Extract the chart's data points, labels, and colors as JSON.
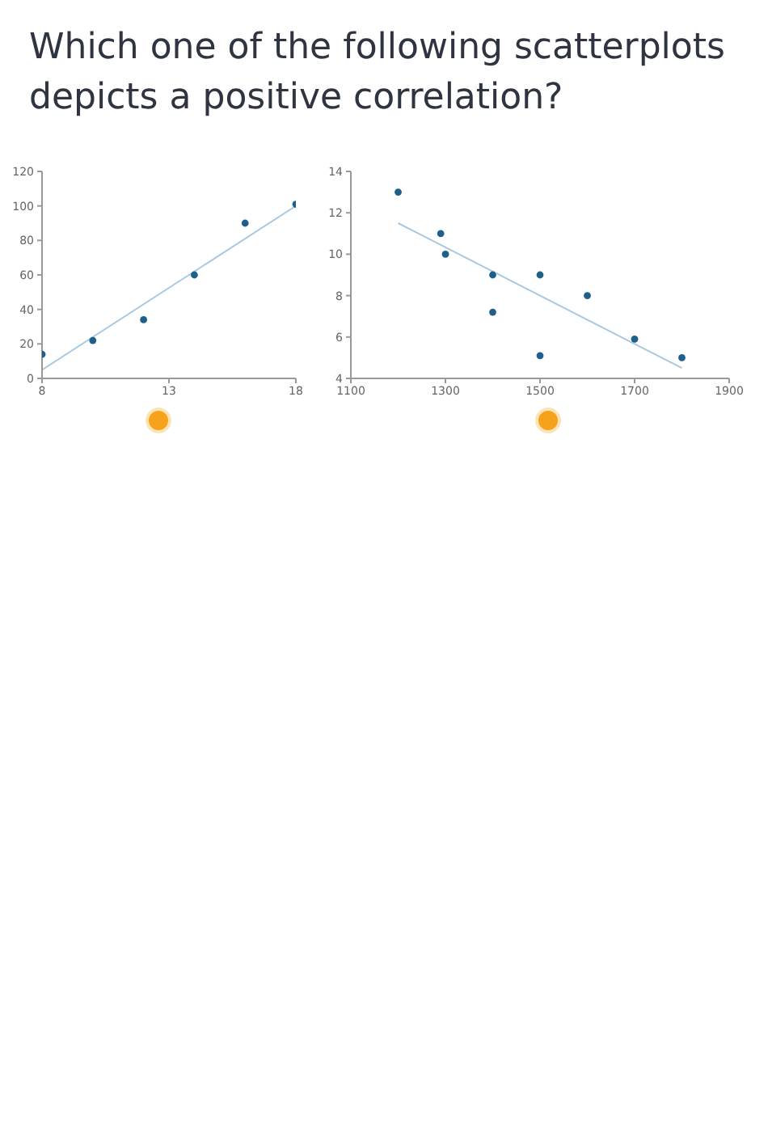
{
  "chart_data": [
    {
      "type": "scatter",
      "title": "Which one of the following scatterplots depicts a positive correlation?",
      "xlim": [
        8,
        18
      ],
      "xticks": [
        8,
        13,
        18
      ],
      "ylim": [
        0,
        120
      ],
      "yticks": [
        0,
        20,
        40,
        60,
        80,
        100,
        120
      ],
      "grid": false,
      "legend": false,
      "marker": "circle",
      "series": [
        {
          "color": "#1f5f8b",
          "x": [
            8,
            10,
            12,
            14,
            16,
            18
          ],
          "values": [
            14,
            22,
            34,
            60,
            90,
            101
          ]
        },
        {
          "type": "line",
          "color": "#a9c9e2",
          "x": [
            8,
            18
          ],
          "values": [
            5,
            100
          ],
          "marker": "none"
        }
      ]
    },
    {
      "type": "scatter",
      "xlim": [
        1100,
        1900
      ],
      "xticks": [
        1100,
        1300,
        1500,
        1700,
        1900
      ],
      "ylim": [
        4,
        14
      ],
      "yticks": [
        4,
        6,
        8,
        10,
        12,
        14
      ],
      "grid": false,
      "legend": false,
      "marker": "circle",
      "series": [
        {
          "color": "#1f5f8b",
          "x": [
            1200,
            1290,
            1300,
            1400,
            1400,
            1500,
            1500,
            1600,
            1700,
            1800
          ],
          "values": [
            13,
            11,
            10,
            9,
            7.2,
            9,
            5.1,
            8,
            5.9,
            5
          ]
        },
        {
          "type": "line",
          "color": "#a9c9e2",
          "x": [
            1200,
            1800
          ],
          "values": [
            11.5,
            4.5
          ],
          "marker": "none"
        }
      ]
    }
  ]
}
